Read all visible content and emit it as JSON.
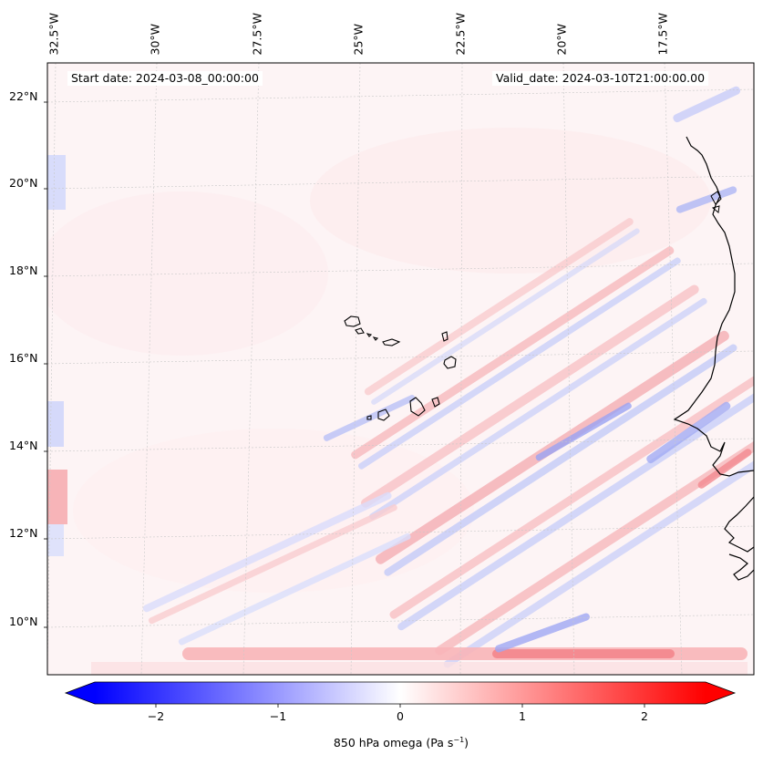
{
  "map": {
    "start_date": "Start date: 2024-03-08_00:00:00",
    "valid_date": "Valid_date: 2024-03-10T21:00:00.00",
    "lon_labels": [
      "32.5°W",
      "30°W",
      "27.5°W",
      "25°W",
      "22.5°W",
      "20°W",
      "17.5°W"
    ],
    "lat_labels": [
      "22°N",
      "20°N",
      "18°N",
      "16°N",
      "14°N",
      "12°N",
      "10°N"
    ],
    "field": "850 hPa omega",
    "colormap": "bwr",
    "colors": {
      "negative": "#0000ff",
      "neutral": "#ffffff",
      "positive": "#ff0000",
      "coast": "#000000"
    }
  },
  "colorbar": {
    "label_text": "850 hPa omega (Pa s",
    "label_exp": "−1",
    "label_close": ")",
    "ticks": [
      "−2",
      "−1",
      "0",
      "1",
      "2"
    ],
    "tick_values": [
      -2,
      -1,
      0,
      1,
      2
    ],
    "range": [
      -2.5,
      2.5
    ],
    "extend": "both"
  }
}
